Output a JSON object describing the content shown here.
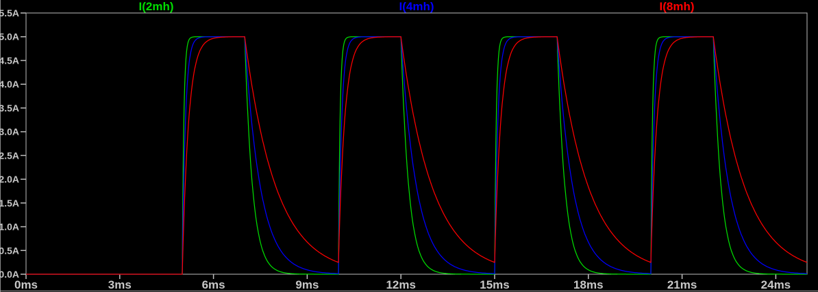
{
  "window": {
    "background_color": "#000000",
    "axis_color": "#bebebe",
    "label_color": "#c8c8c8",
    "pane_border_bottom_color": "#a8a8a8",
    "pane_border_left_color": "#8a8a8a"
  },
  "chart_data": {
    "type": "line",
    "title": "",
    "xlabel": "",
    "ylabel": "",
    "grid": false,
    "legend_position": "top",
    "x_axis": {
      "unit": "ms",
      "min": 0,
      "max": 25,
      "tick_step_ms": 3,
      "tick_labels": [
        "0ms",
        "3ms",
        "6ms",
        "9ms",
        "12ms",
        "15ms",
        "18ms",
        "21ms",
        "24ms"
      ]
    },
    "y_axis": {
      "unit": "A",
      "min": 0,
      "max": 5.5,
      "tick_step_A": 0.5,
      "tick_labels": [
        "5.5A",
        "5.0A",
        "4.5A",
        "4.0A",
        "3.5A",
        "3.0A",
        "2.5A",
        "2.0A",
        "1.5A",
        "1.0A",
        "0.5A",
        "0.0A"
      ]
    },
    "legend": [
      {
        "label": "I(2mh)",
        "color": "#00dc00"
      },
      {
        "label": "I(4mh)",
        "color": "#0000ff"
      },
      {
        "label": "I(8mh)",
        "color": "#ff0000"
      }
    ],
    "waveform_model": {
      "description": "Inductor currents for a repeated voltage pulse: zero until first pulse; exponential rise toward 5A while pulse is on (2ms), exponential decay toward 0A while off; four pulses.",
      "amplitude_A": 5.0,
      "pulse_start_ms": 5,
      "pulse_period_ms": 5,
      "pulse_on_ms": 2,
      "num_pulses": 4,
      "series": [
        {
          "name": "I(2mh)",
          "inductance_mH": 2,
          "color": "#00dc00",
          "tau_rise_ms": 0.05,
          "tau_fall_ms": 0.25
        },
        {
          "name": "I(4mh)",
          "inductance_mH": 4,
          "color": "#0000ff",
          "tau_rise_ms": 0.1,
          "tau_fall_ms": 0.5
        },
        {
          "name": "I(8mh)",
          "inductance_mH": 8,
          "color": "#ff0000",
          "tau_rise_ms": 0.2,
          "tau_fall_ms": 1.0
        }
      ],
      "flat_top_level_A": 5.0,
      "pulse_on_windows_ms": [
        [
          5,
          7
        ],
        [
          10,
          12
        ],
        [
          15,
          17
        ],
        [
          20,
          22
        ]
      ]
    }
  }
}
